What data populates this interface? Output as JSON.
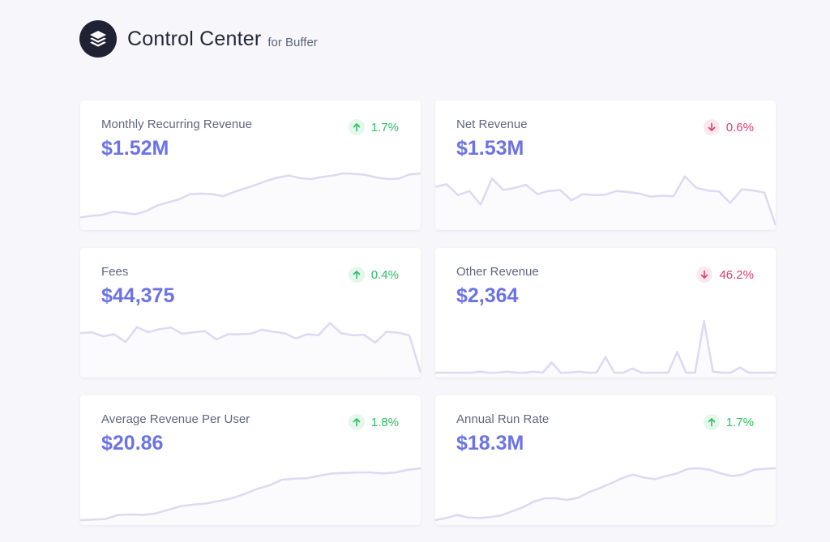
{
  "header": {
    "title": "Control Center",
    "subtitle": "for Buffer",
    "logo_icon": "buffer-stack-icon"
  },
  "colors": {
    "value": "#6b73e6",
    "positive": "#2ebf62",
    "negative": "#e23b6f",
    "sparkline": "#ddd9f3"
  },
  "cards": [
    {
      "title": "Monthly Recurring Revenue",
      "value": "$1.52M",
      "change": "1.7%",
      "direction": "up",
      "trend": [
        0.15,
        0.18,
        0.2,
        0.26,
        0.24,
        0.21,
        0.27,
        0.38,
        0.44,
        0.5,
        0.6,
        0.61,
        0.6,
        0.56,
        0.64,
        0.71,
        0.78,
        0.86,
        0.92,
        0.96,
        0.91,
        0.89,
        0.93,
        0.96,
        1.0,
        0.99,
        0.97,
        0.92,
        0.89,
        0.9,
        0.98,
        1.0
      ]
    },
    {
      "title": "Net Revenue",
      "value": "$1.53M",
      "change": "0.6%",
      "direction": "down",
      "trend": [
        0.74,
        0.79,
        0.58,
        0.66,
        0.4,
        0.9,
        0.68,
        0.72,
        0.78,
        0.6,
        0.66,
        0.68,
        0.48,
        0.6,
        0.58,
        0.59,
        0.66,
        0.64,
        0.61,
        0.55,
        0.57,
        0.56,
        0.94,
        0.72,
        0.67,
        0.65,
        0.43,
        0.69,
        0.67,
        0.63,
        0.0
      ]
    },
    {
      "title": "Fees",
      "value": "$44,375",
      "change": "0.4%",
      "direction": "up",
      "trend": [
        0.76,
        0.78,
        0.7,
        0.74,
        0.59,
        0.88,
        0.78,
        0.84,
        0.87,
        0.75,
        0.78,
        0.8,
        0.64,
        0.74,
        0.74,
        0.75,
        0.83,
        0.79,
        0.76,
        0.66,
        0.74,
        0.72,
        0.96,
        0.76,
        0.72,
        0.73,
        0.58,
        0.79,
        0.77,
        0.72,
        0.0
      ]
    },
    {
      "title": "Other Revenue",
      "value": "$2,364",
      "change": "46.2%",
      "direction": "down",
      "trend": [
        0.0,
        0.0,
        0.0,
        0.0,
        0.0,
        0.02,
        0.0,
        0.0,
        0.02,
        0.0,
        0.0,
        0.02,
        0.0,
        0.2,
        0.0,
        0.0,
        0.02,
        0.0,
        0.0,
        0.3,
        0.0,
        0.0,
        0.08,
        0.0,
        0.0,
        0.0,
        0.0,
        0.4,
        0.0,
        0.0,
        1.0,
        0.02,
        0.0,
        0.0,
        0.1,
        0.0,
        0.0,
        0.0,
        0.0
      ]
    },
    {
      "title": "Average Revenue Per User",
      "value": "$20.86",
      "change": "1.8%",
      "direction": "up",
      "trend": [
        0.0,
        0.01,
        0.02,
        0.1,
        0.11,
        0.1,
        0.13,
        0.2,
        0.27,
        0.3,
        0.32,
        0.37,
        0.42,
        0.5,
        0.6,
        0.67,
        0.78,
        0.8,
        0.81,
        0.86,
        0.9,
        0.91,
        0.92,
        0.92,
        0.9,
        0.92,
        0.97,
        1.0
      ]
    },
    {
      "title": "Annual Run Rate",
      "value": "$18.3M",
      "change": "1.7%",
      "direction": "up",
      "trend": [
        0.0,
        0.04,
        0.1,
        0.05,
        0.04,
        0.06,
        0.09,
        0.17,
        0.25,
        0.36,
        0.42,
        0.42,
        0.39,
        0.43,
        0.54,
        0.62,
        0.71,
        0.81,
        0.88,
        0.82,
        0.79,
        0.85,
        0.9,
        0.99,
        1.0,
        0.97,
        0.9,
        0.85,
        0.88,
        0.97,
        0.99,
        1.0
      ]
    }
  ]
}
